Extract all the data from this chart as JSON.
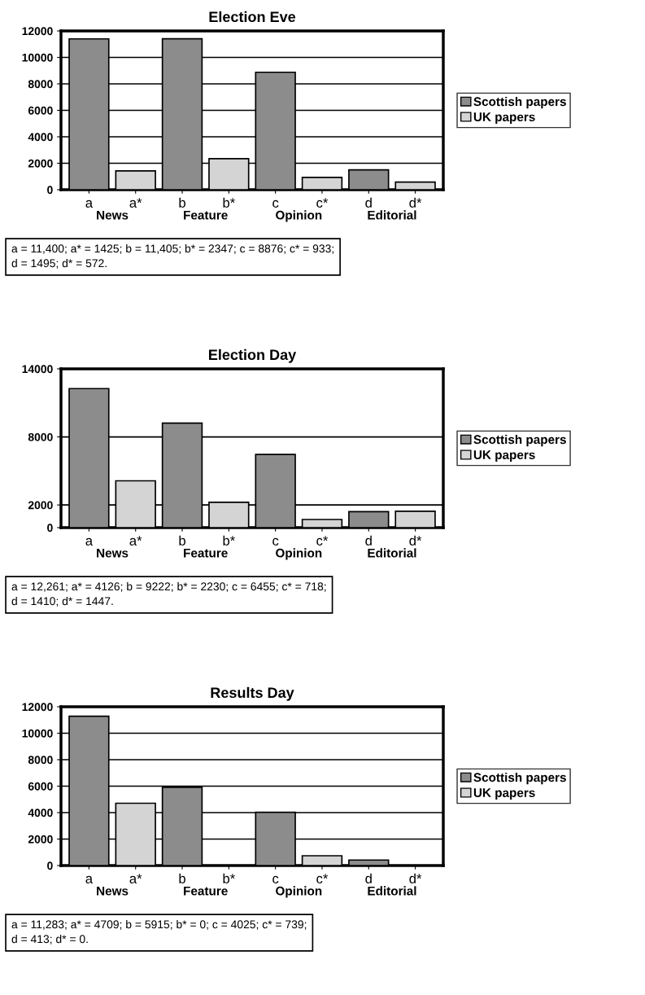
{
  "chart_data": [
    {
      "type": "bar",
      "title": "Election Eve",
      "categories": [
        "a",
        "a*",
        "b",
        "b*",
        "c",
        "c*",
        "d",
        "d*"
      ],
      "series": [
        {
          "name": "Scottish papers",
          "color": "#8c8c8c",
          "values": [
            11400,
            null,
            11405,
            null,
            8876,
            null,
            1495,
            null
          ]
        },
        {
          "name": "UK papers",
          "color": "#d4d4d4",
          "values": [
            null,
            1425,
            null,
            2347,
            null,
            933,
            null,
            572
          ]
        }
      ],
      "ylim": [
        0,
        12000
      ],
      "yticks": [
        0,
        2000,
        4000,
        6000,
        8000,
        10000,
        12000
      ],
      "grid": "y",
      "legend": "right",
      "annotations": [
        "News",
        "Feature",
        "Opinion",
        "Editorial",
        "a = 11,400; a* = 1425; b = 11,405; b* = 2347; c = 8876; c* = 933;\nd = 1495; d* = 572."
      ]
    },
    {
      "type": "bar",
      "title": "Election Day",
      "categories": [
        "a",
        "a*",
        "b",
        "b*",
        "c",
        "c*",
        "d",
        "d*"
      ],
      "series": [
        {
          "name": "Scottish papers",
          "color": "#8c8c8c",
          "values": [
            12261,
            null,
            9222,
            null,
            6455,
            null,
            1410,
            null
          ]
        },
        {
          "name": "UK papers",
          "color": "#d4d4d4",
          "values": [
            null,
            4126,
            null,
            2230,
            null,
            718,
            null,
            1447
          ]
        }
      ],
      "ylim": [
        0,
        14000
      ],
      "yticks": [
        0,
        2000,
        8000,
        14000
      ],
      "grid": "y",
      "legend": "right",
      "annotations": [
        "News",
        "Feature",
        "Opinion",
        "Editorial",
        "a = 12,261; a* = 4126; b = 9222; b* = 2230; c = 6455; c* = 718;\nd = 1410; d* = 1447."
      ]
    },
    {
      "type": "bar",
      "title": "Results Day",
      "categories": [
        "a",
        "a*",
        "b",
        "b*",
        "c",
        "c*",
        "d",
        "d*"
      ],
      "series": [
        {
          "name": "Scottish papers",
          "color": "#8c8c8c",
          "values": [
            11283,
            null,
            5915,
            null,
            4025,
            null,
            413,
            null
          ]
        },
        {
          "name": "UK papers",
          "color": "#d4d4d4",
          "values": [
            null,
            4709,
            null,
            0,
            null,
            739,
            null,
            0
          ]
        }
      ],
      "ylim": [
        0,
        12000
      ],
      "yticks": [
        0,
        2000,
        4000,
        6000,
        8000,
        10000,
        12000
      ],
      "grid": "y",
      "legend": "right",
      "annotations": [
        "News",
        "Feature",
        "Opinion",
        "Editorial",
        "a = 11,283; a* = 4709; b = 5915; b* = 0; c = 4025; c* = 739;\nd = 413; d* = 0."
      ]
    }
  ]
}
